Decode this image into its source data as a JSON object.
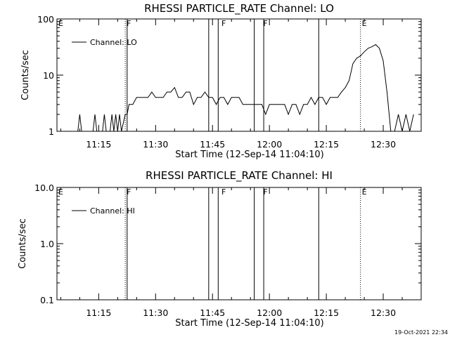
{
  "chart_data": [
    {
      "type": "line",
      "title": "RHESSI PARTICLE_RATE Channel: LO",
      "xlabel": "Start Time (12-Sep-14 11:04:10)",
      "ylabel": "Counts/sec",
      "y_scale": "log",
      "ylim": [
        1,
        100
      ],
      "y_ticks": [
        "1",
        "10",
        "100"
      ],
      "x_ticks": [
        "11:15",
        "11:30",
        "11:45",
        "12:00",
        "12:15",
        "12:30"
      ],
      "xlim": [
        "11:04",
        "12:40"
      ],
      "legend": "top-left",
      "series": [
        {
          "name": "Channel: LO",
          "x": [
            "11:09.5",
            "11:10",
            "11:10.5",
            "11:11",
            "11:13.5",
            "11:14",
            "11:14.5",
            "11:15",
            "11:16",
            "11:16.5",
            "11:17",
            "11:18",
            "11:18.5",
            "11:19",
            "11:19.5",
            "11:20",
            "11:20.5",
            "11:21",
            "11:22",
            "11:22.5",
            "11:23",
            "11:24",
            "11:25",
            "11:26",
            "11:27",
            "11:28",
            "11:29",
            "11:30",
            "11:31",
            "11:32",
            "11:33",
            "11:34",
            "11:35",
            "11:36",
            "11:37",
            "11:38",
            "11:39",
            "11:40",
            "11:41",
            "11:42",
            "11:43",
            "11:44",
            "11:45",
            "11:46",
            "11:47",
            "11:48",
            "11:49",
            "11:50",
            "11:51",
            "11:52",
            "11:53",
            "11:54",
            "11:55",
            "11:56",
            "11:57",
            "11:58",
            "11:59",
            "12:00",
            "12:01",
            "12:02",
            "12:03",
            "12:04",
            "12:05",
            "12:06",
            "12:07",
            "12:08",
            "12:09",
            "12:10",
            "12:11",
            "12:12",
            "12:13",
            "12:14",
            "12:15",
            "12:16",
            "12:17",
            "12:18",
            "12:19",
            "12:20",
            "12:21",
            "12:22",
            "12:23",
            "12:24",
            "12:25",
            "12:26",
            "12:27",
            "12:28",
            "12:29",
            "12:30",
            "12:31",
            "12:32",
            "12:33",
            "12:34",
            "12:35",
            "12:36",
            "12:37",
            "12:38"
          ],
          "y": [
            1,
            2,
            1,
            1,
            1,
            2,
            1,
            1,
            1,
            2,
            1,
            1,
            2,
            1,
            2,
            1,
            2,
            1,
            2,
            2,
            3,
            3,
            4,
            4,
            4,
            4,
            5,
            4,
            4,
            4,
            5,
            5,
            6,
            4,
            4,
            5,
            5,
            3,
            4,
            4,
            5,
            4,
            4,
            3,
            4,
            4,
            3,
            4,
            4,
            4,
            3,
            3,
            3,
            3,
            3,
            3,
            2,
            3,
            3,
            3,
            3,
            3,
            2,
            3,
            3,
            2,
            3,
            3,
            4,
            3,
            4,
            4,
            3,
            4,
            4,
            4,
            5,
            6,
            8,
            16,
            20,
            22,
            26,
            30,
            32,
            35,
            30,
            18,
            5,
            1,
            1,
            2,
            1,
            2,
            1,
            2
          ]
        }
      ],
      "annotations": [
        {
          "text": "E",
          "x": "11:04"
        },
        {
          "text": "F",
          "x": "11:22"
        },
        {
          "text": "F",
          "x": "11:47"
        },
        {
          "text": "F",
          "x": "11:58"
        },
        {
          "text": "E",
          "x": "12:24"
        }
      ],
      "markers": [
        {
          "x": "11:22",
          "style": "dotted"
        },
        {
          "x": "11:22.5",
          "style": "solid"
        },
        {
          "x": "11:44",
          "style": "solid"
        },
        {
          "x": "11:46.5",
          "style": "solid"
        },
        {
          "x": "11:56",
          "style": "solid"
        },
        {
          "x": "11:58.5",
          "style": "solid"
        },
        {
          "x": "12:13",
          "style": "solid"
        },
        {
          "x": "12:24",
          "style": "dotted"
        },
        {
          "x": "12:41",
          "style": "dotted"
        }
      ]
    },
    {
      "type": "line",
      "title": "RHESSI PARTICLE_RATE Channel: HI",
      "xlabel": "Start Time (12-Sep-14 11:04:10)",
      "ylabel": "Counts/sec",
      "y_scale": "log",
      "ylim": [
        0.1,
        10
      ],
      "y_ticks": [
        "0.1",
        "1.0",
        "10.0"
      ],
      "x_ticks": [
        "11:15",
        "11:30",
        "11:45",
        "12:00",
        "12:15",
        "12:30"
      ],
      "xlim": [
        "11:04",
        "12:40"
      ],
      "legend": "top-left",
      "series": [
        {
          "name": "Channel: HI",
          "x": [],
          "y": []
        }
      ],
      "annotations": [
        {
          "text": "E",
          "x": "11:04"
        },
        {
          "text": "F",
          "x": "11:22"
        },
        {
          "text": "F",
          "x": "11:47"
        },
        {
          "text": "F",
          "x": "11:58"
        },
        {
          "text": "E",
          "x": "12:24"
        }
      ],
      "markers": [
        {
          "x": "11:22",
          "style": "dotted"
        },
        {
          "x": "11:22.5",
          "style": "solid"
        },
        {
          "x": "11:44",
          "style": "solid"
        },
        {
          "x": "11:46.5",
          "style": "solid"
        },
        {
          "x": "11:56",
          "style": "solid"
        },
        {
          "x": "11:58.5",
          "style": "solid"
        },
        {
          "x": "12:13",
          "style": "solid"
        },
        {
          "x": "12:24",
          "style": "dotted"
        },
        {
          "x": "12:41",
          "style": "dotted"
        }
      ]
    }
  ],
  "footer": {
    "timestamp": "19-Oct-2021 22:34"
  }
}
